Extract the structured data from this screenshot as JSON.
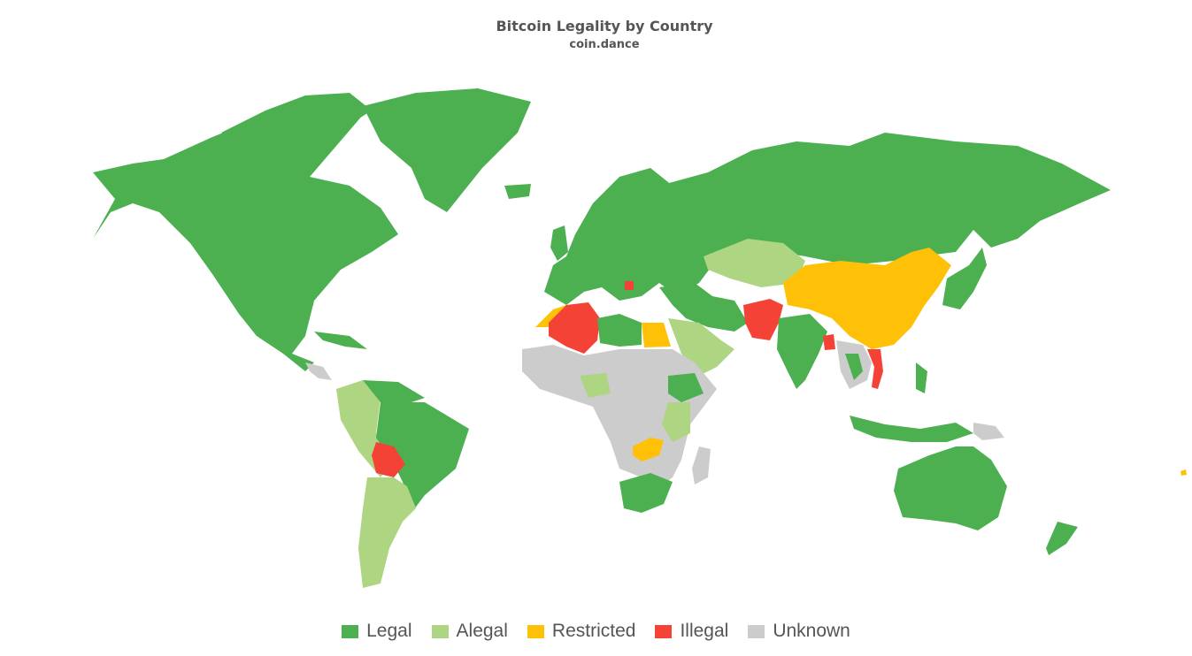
{
  "title": "Bitcoin Legality by Country",
  "subtitle": "coin.dance",
  "colors": {
    "legal": "#4caf50",
    "alegal": "#aed581",
    "restricted": "#ffc107",
    "illegal": "#f44336",
    "unknown": "#cccccc"
  },
  "legend": [
    {
      "label": "Legal",
      "color": "#4caf50"
    },
    {
      "label": "Alegal",
      "color": "#aed581"
    },
    {
      "label": "Restricted",
      "color": "#ffc107"
    },
    {
      "label": "Illegal",
      "color": "#f44336"
    },
    {
      "label": "Unknown",
      "color": "#cccccc"
    }
  ]
}
